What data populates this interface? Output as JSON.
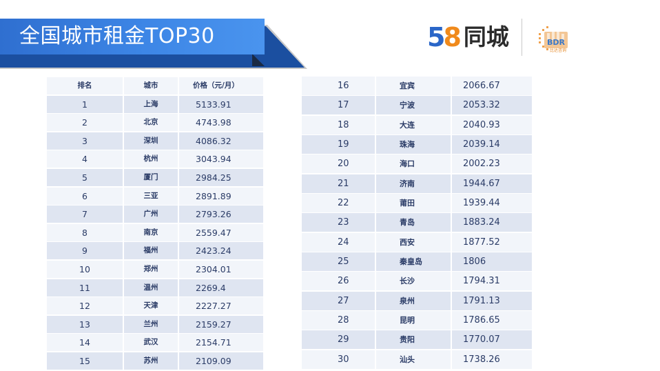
{
  "header": {
    "title": "全国城市租金TOP30"
  },
  "logos": {
    "brand_digit_5": "5",
    "brand_digit_8": "8",
    "brand_name": "同城",
    "bdr_mark": "BDR",
    "bdr_sub": "比达咨询"
  },
  "colors": {
    "banner_blue": "#3d86e6",
    "brand_blue": "#2a66c8",
    "brand_orange": "#f08a1c",
    "row_dark": "#dfe5f1",
    "row_light": "#f2f5fa",
    "text_navy": "#2a3b66"
  },
  "table": {
    "headers": [
      "排名",
      "城市",
      "价格（元/月）"
    ],
    "left_rows": [
      {
        "rank": "1",
        "city": "上海",
        "price": "5133.91"
      },
      {
        "rank": "2",
        "city": "北京",
        "price": "4743.98"
      },
      {
        "rank": "3",
        "city": "深圳",
        "price": "4086.32"
      },
      {
        "rank": "4",
        "city": "杭州",
        "price": "3043.94"
      },
      {
        "rank": "5",
        "city": "厦门",
        "price": "2984.25"
      },
      {
        "rank": "6",
        "city": "三亚",
        "price": "2891.89"
      },
      {
        "rank": "7",
        "city": "广州",
        "price": "2793.26"
      },
      {
        "rank": "8",
        "city": "南京",
        "price": "2559.47"
      },
      {
        "rank": "9",
        "city": "福州",
        "price": "2423.24"
      },
      {
        "rank": "10",
        "city": "郑州",
        "price": "2304.01"
      },
      {
        "rank": "11",
        "city": "温州",
        "price": "2269.4"
      },
      {
        "rank": "12",
        "city": "天津",
        "price": "2227.27"
      },
      {
        "rank": "13",
        "city": "兰州",
        "price": "2159.27"
      },
      {
        "rank": "14",
        "city": "武汉",
        "price": "2154.71"
      },
      {
        "rank": "15",
        "city": "苏州",
        "price": "2109.09"
      }
    ],
    "right_rows": [
      {
        "rank": "16",
        "city": "宜宾",
        "price": "2066.67"
      },
      {
        "rank": "17",
        "city": "宁波",
        "price": "2053.32"
      },
      {
        "rank": "18",
        "city": "大连",
        "price": "2040.93"
      },
      {
        "rank": "19",
        "city": "珠海",
        "price": "2039.14"
      },
      {
        "rank": "20",
        "city": "海口",
        "price": "2002.23"
      },
      {
        "rank": "21",
        "city": "济南",
        "price": "1944.67"
      },
      {
        "rank": "22",
        "city": "莆田",
        "price": "1939.44"
      },
      {
        "rank": "23",
        "city": "青岛",
        "price": "1883.24"
      },
      {
        "rank": "24",
        "city": "西安",
        "price": "1877.52"
      },
      {
        "rank": "25",
        "city": "秦皇岛",
        "price": "1806"
      },
      {
        "rank": "26",
        "city": "长沙",
        "price": "1794.31"
      },
      {
        "rank": "27",
        "city": "泉州",
        "price": "1791.13"
      },
      {
        "rank": "28",
        "city": "昆明",
        "price": "1786.65"
      },
      {
        "rank": "29",
        "city": "贵阳",
        "price": "1770.07"
      },
      {
        "rank": "30",
        "city": "汕头",
        "price": "1738.26"
      }
    ]
  }
}
